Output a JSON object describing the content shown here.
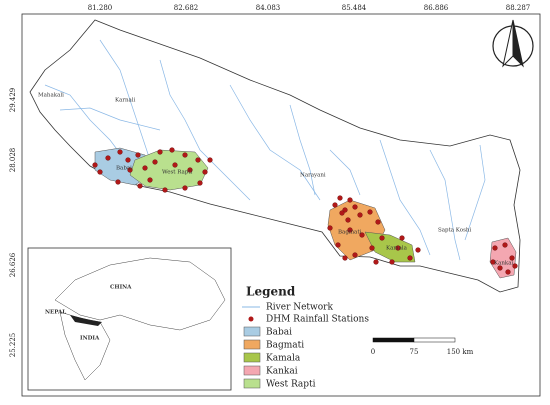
{
  "graticule": {
    "top": [
      "81.280",
      "82.682",
      "84.083",
      "85.484",
      "86.886",
      "88.287"
    ],
    "left": [
      "29.429",
      "28.028",
      "26.626",
      "25.225"
    ]
  },
  "map_labels": [
    "Mahakali",
    "Karnali",
    "Babai",
    "West Rapti",
    "Narayani",
    "Bagmati",
    "Kamala",
    "Sapta Koshi",
    "Kankai"
  ],
  "inset": {
    "labels": [
      "NEPAL",
      "CHINA",
      "INDIA"
    ]
  },
  "legend": {
    "title": "Legend",
    "items": [
      "River Network",
      "DHM Rainfall Stations",
      "Babai",
      "Bagmati",
      "Kamala",
      "Kankai",
      "West Rapti"
    ]
  },
  "scale_bar": {
    "labels": [
      "0",
      "75",
      "150 km"
    ]
  }
}
